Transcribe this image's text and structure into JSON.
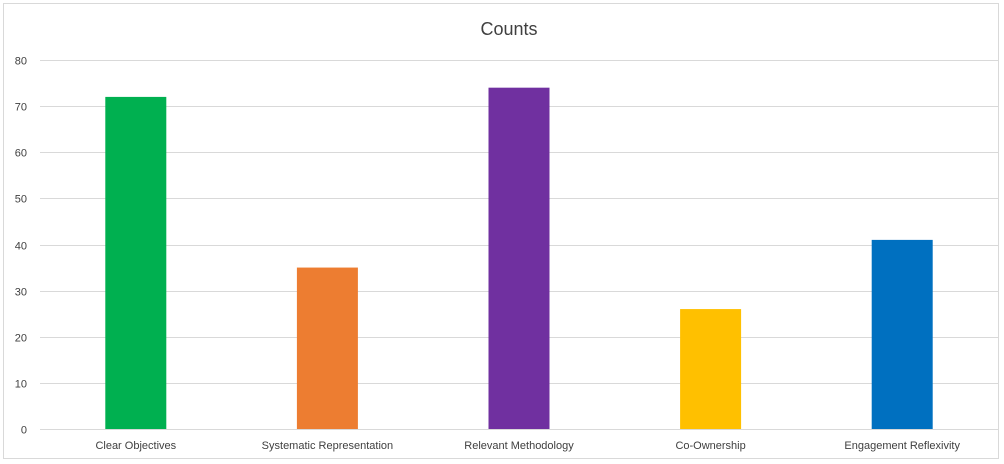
{
  "chart_data": {
    "type": "bar",
    "title": "Counts",
    "xlabel": "",
    "ylabel": "",
    "categories": [
      "Clear Objectives",
      "Systematic Representation",
      "Relevant Methodology",
      "Co-Ownership",
      "Engagement Reflexivity"
    ],
    "values": [
      72,
      35,
      74,
      26,
      41
    ],
    "colors": [
      "#00b050",
      "#ed7d31",
      "#7030a0",
      "#ffc000",
      "#0070c0"
    ],
    "ylim": [
      0,
      80
    ],
    "yticks": [
      0,
      10,
      20,
      30,
      40,
      50,
      60,
      70,
      80
    ],
    "grid": true,
    "legend": "none",
    "gridline_color": "#d9d9d9"
  }
}
